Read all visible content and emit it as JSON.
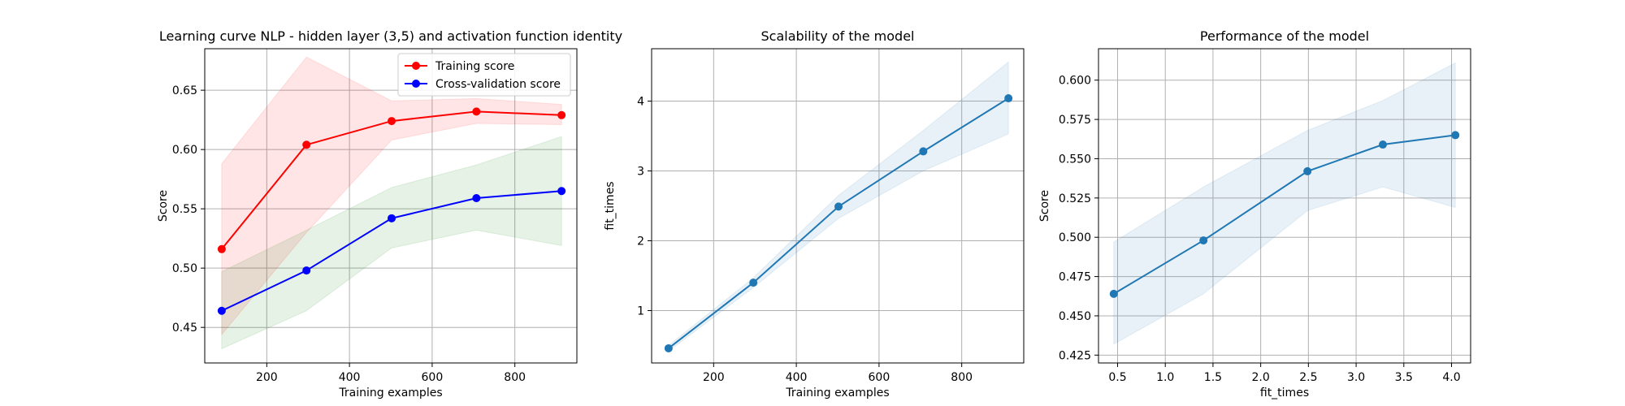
{
  "chart_data": [
    {
      "type": "line",
      "title": "Learning curve NLP - hidden layer (3,5) and activation function identity",
      "xlabel": "Training examples",
      "ylabel": "Score",
      "xlim": [
        50,
        950
      ],
      "ylim": [
        0.42,
        0.685
      ],
      "xticks": [
        200,
        400,
        600,
        800
      ],
      "yticks": [
        0.45,
        0.5,
        0.55,
        0.6,
        0.65
      ],
      "grid": true,
      "legend_position": "upper right",
      "series": [
        {
          "name": "Training score",
          "color": "#ff0000",
          "x": [
            91,
            296,
            502,
            707,
            913
          ],
          "y": [
            0.516,
            0.604,
            0.624,
            0.632,
            0.629
          ],
          "band_lower": [
            0.444,
            0.53,
            0.608,
            0.622,
            0.621
          ],
          "band_upper": [
            0.588,
            0.678,
            0.641,
            0.643,
            0.638
          ],
          "band_color": "#ff0000"
        },
        {
          "name": "Cross-validation score",
          "color": "#0000ff",
          "x": [
            91,
            296,
            502,
            707,
            913
          ],
          "y": [
            0.464,
            0.498,
            0.542,
            0.559,
            0.565
          ],
          "band_lower": [
            0.432,
            0.464,
            0.517,
            0.532,
            0.519
          ],
          "band_upper": [
            0.497,
            0.532,
            0.568,
            0.587,
            0.611
          ],
          "band_color": "#008000"
        }
      ]
    },
    {
      "type": "line",
      "title": "Scalability of the model",
      "xlabel": "Training examples",
      "ylabel": "fit_times",
      "xlim": [
        50,
        950
      ],
      "ylim": [
        0.25,
        4.75
      ],
      "xticks": [
        200,
        400,
        600,
        800
      ],
      "yticks": [
        1,
        2,
        3,
        4
      ],
      "grid": true,
      "series": [
        {
          "color": "#1f77b4",
          "x": [
            91,
            296,
            502,
            707,
            913
          ],
          "y": [
            0.46,
            1.4,
            2.49,
            3.28,
            4.04
          ],
          "band_lower": [
            0.42,
            1.33,
            2.32,
            3.0,
            3.53
          ],
          "band_upper": [
            0.5,
            1.47,
            2.65,
            3.58,
            4.56
          ],
          "band_color": "#1f77b4"
        }
      ]
    },
    {
      "type": "line",
      "title": "Performance of the model",
      "xlabel": "fit_times",
      "ylabel": "Score",
      "xlim": [
        0.3,
        4.2
      ],
      "ylim": [
        0.42,
        0.62
      ],
      "xticks": [
        0.5,
        1.0,
        1.5,
        2.0,
        2.5,
        3.0,
        3.5,
        4.0
      ],
      "yticks": [
        0.425,
        0.45,
        0.475,
        0.5,
        0.525,
        0.55,
        0.575,
        0.6
      ],
      "grid": true,
      "series": [
        {
          "color": "#1f77b4",
          "x": [
            0.46,
            1.4,
            2.49,
            3.28,
            4.04
          ],
          "y": [
            0.464,
            0.498,
            0.542,
            0.559,
            0.565
          ],
          "band_lower": [
            0.432,
            0.464,
            0.517,
            0.532,
            0.519
          ],
          "band_upper": [
            0.497,
            0.532,
            0.568,
            0.587,
            0.611
          ],
          "band_color": "#1f77b4"
        }
      ]
    }
  ]
}
